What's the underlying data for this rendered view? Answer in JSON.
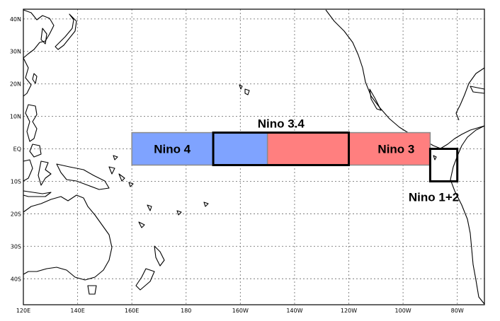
{
  "map": {
    "lon_range": [
      120,
      290
    ],
    "lat_range": [
      -48,
      43
    ],
    "lon_ticks": [
      {
        "lon": 120,
        "label": "120E"
      },
      {
        "lon": 140,
        "label": "140E"
      },
      {
        "lon": 160,
        "label": "160E"
      },
      {
        "lon": 180,
        "label": "180"
      },
      {
        "lon": 200,
        "label": "160W"
      },
      {
        "lon": 220,
        "label": "140W"
      },
      {
        "lon": 240,
        "label": "120W"
      },
      {
        "lon": 260,
        "label": "100W"
      },
      {
        "lon": 280,
        "label": "80W"
      }
    ],
    "lat_ticks": [
      {
        "lat": 40,
        "label": "40N"
      },
      {
        "lat": 30,
        "label": "30N"
      },
      {
        "lat": 20,
        "label": "20N"
      },
      {
        "lat": 10,
        "label": "10N"
      },
      {
        "lat": 0,
        "label": "EQ"
      },
      {
        "lat": -10,
        "label": "10S"
      },
      {
        "lat": -20,
        "label": "20S"
      },
      {
        "lat": -30,
        "label": "30S"
      },
      {
        "lat": -40,
        "label": "40S"
      }
    ],
    "gridlines": "dotted"
  },
  "regions": [
    {
      "id": "nino4",
      "label": "Nino 4",
      "lon": [
        160,
        210
      ],
      "lat": [
        -5,
        5
      ],
      "fill": "#7fa3ff"
    },
    {
      "id": "nino3",
      "label": "Nino 3",
      "lon": [
        210,
        270
      ],
      "lat": [
        -5,
        5
      ],
      "fill": "#ff7f7f"
    },
    {
      "id": "nino34",
      "label": "Nino 3.4",
      "lon": [
        190,
        240
      ],
      "lat": [
        -5,
        5
      ],
      "fill": "none"
    },
    {
      "id": "nino12",
      "label": "Nino 1+2",
      "lon": [
        270,
        280
      ],
      "lat": [
        -10,
        0
      ],
      "fill": "none"
    }
  ],
  "colors": {
    "nino4_fill": "#7fa3ff",
    "nino3_fill": "#ff7f7f",
    "region_border": "#000000",
    "coastline": "#000000"
  }
}
